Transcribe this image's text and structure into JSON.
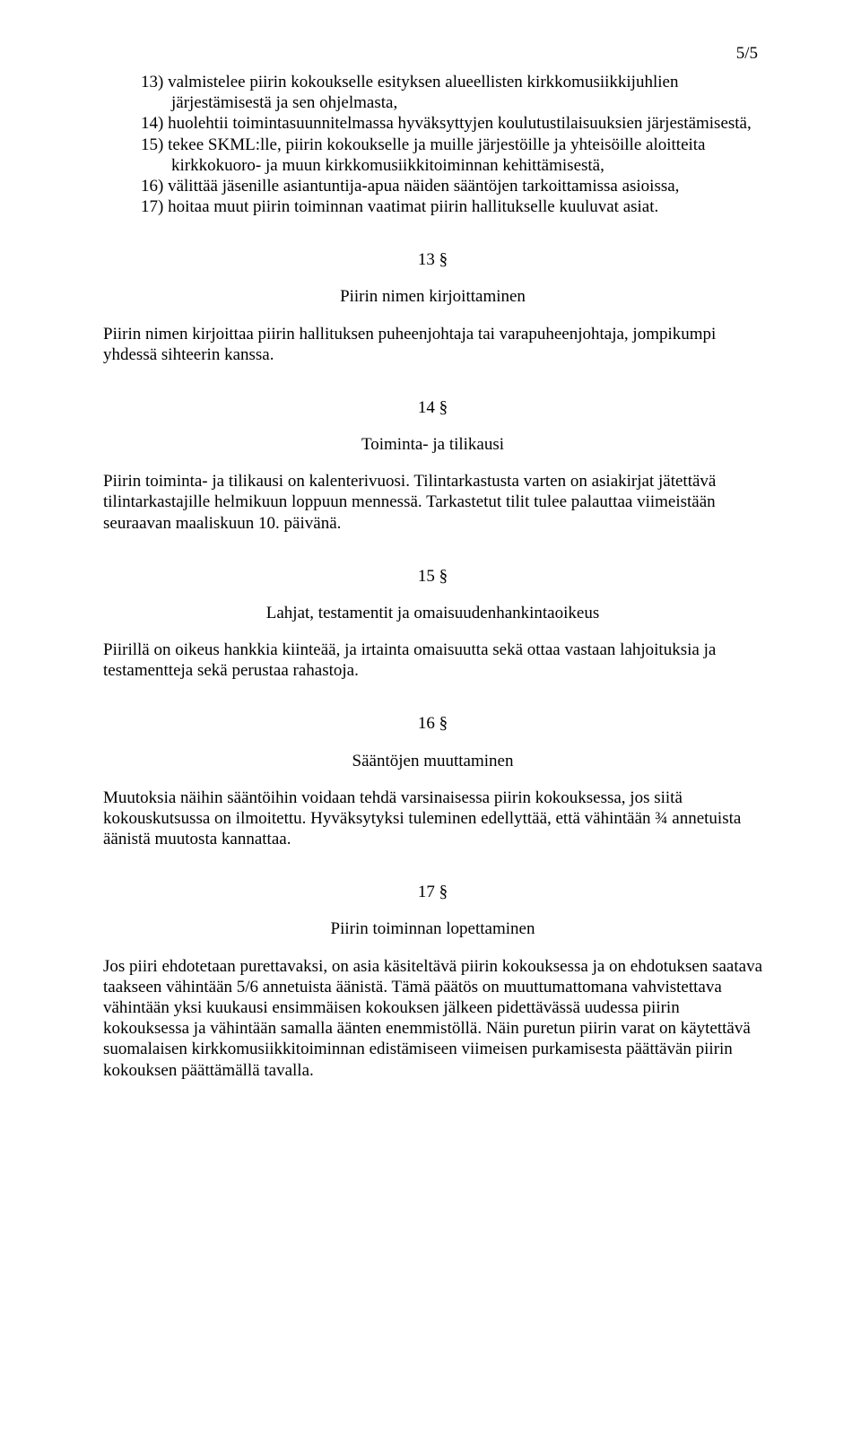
{
  "pagenum": "5/5",
  "items": {
    "i13": "13) valmistelee piirin kokoukselle esityksen alueellisten kirkkomusiikkijuhlien järjestämisestä ja sen ohjelmasta,",
    "i14": "14) huolehtii toimintasuunnitelmassa hyväksyttyjen koulutustilaisuuksien järjestämisestä,",
    "i15": "15) tekee SKML:lle, piirin kokoukselle ja muille järjestöille ja yhteisöille aloitteita kirkkokuoro- ja muun kirkkomusiikkitoiminnan kehittämisestä,",
    "i16": "16) välittää jäsenille asiantuntija-apua näiden sääntöjen tarkoittamissa asioissa,",
    "i17": "17) hoitaa muut piirin toiminnan vaatimat piirin hallitukselle kuuluvat asiat."
  },
  "s13": {
    "num": "13 §",
    "title": "Piirin nimen kirjoittaminen",
    "body": "Piirin nimen kirjoittaa piirin hallituksen puheenjohtaja tai varapuheenjohtaja, jompikumpi yhdessä sihteerin kanssa."
  },
  "s14": {
    "num": "14 §",
    "title": "Toiminta- ja tilikausi",
    "body": "Piirin toiminta- ja tilikausi on kalenterivuosi. Tilintarkastusta varten on asiakirjat jätettävä tilintarkastajille helmikuun loppuun mennessä. Tarkastetut tilit tulee palauttaa viimeistään seuraavan maaliskuun 10. päivänä."
  },
  "s15": {
    "num": "15 §",
    "title": "Lahjat, testamentit ja omaisuudenhankintaoikeus",
    "body": "Piirillä on oikeus hankkia kiinteää, ja irtainta omaisuutta sekä ottaa vastaan lahjoituksia ja testamentteja sekä perustaa rahastoja."
  },
  "s16": {
    "num": "16 §",
    "title": "Sääntöjen muuttaminen",
    "body": "Muutoksia näihin sääntöihin voidaan tehdä varsinaisessa piirin kokouksessa, jos siitä kokouskutsussa on ilmoitettu. Hyväksytyksi tuleminen edellyttää, että vähintään ¾ annetuista äänistä muutosta kannattaa."
  },
  "s17": {
    "num": "17 §",
    "title": "Piirin toiminnan lopettaminen",
    "body": "Jos piiri ehdotetaan purettavaksi, on asia käsiteltävä piirin kokouksessa ja on ehdotuksen saatava taakseen vähintään 5/6 annetuista äänistä. Tämä päätös on muuttumattomana vahvistettava vähintään yksi kuukausi ensimmäisen kokouksen jälkeen pidettävässä uudessa piirin kokouksessa ja vähintään samalla äänten enemmistöllä. Näin puretun piirin varat on käytettävä suomalaisen kirkkomusiikkitoiminnan edistämiseen viimeisen purkamisesta päättävän piirin kokouksen päättämällä tavalla."
  }
}
